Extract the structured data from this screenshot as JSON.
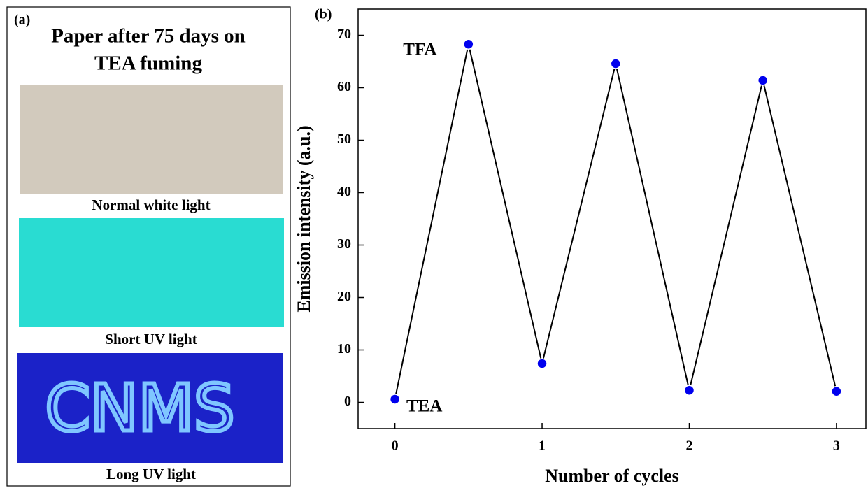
{
  "panel_a": {
    "label": "(a)",
    "title_lines": [
      "Paper after 75 days on",
      "TEA fuming"
    ],
    "captions": [
      "Normal white light",
      "Short UV light",
      "Long UV light"
    ],
    "photo_text": "CNMS"
  },
  "chart_data": {
    "type": "line",
    "panel_label": "(b)",
    "x_label": "Number of cycles",
    "y_label": "Emission intensity (a.u.)",
    "x": [
      0,
      0.5,
      1,
      1.5,
      2,
      2.5,
      3
    ],
    "values": [
      0.6,
      68.3,
      7.4,
      64.6,
      2.3,
      61.4,
      2.1
    ],
    "color": "#0000ee",
    "line_color": "#000000",
    "xlim": [
      -0.25,
      3.2
    ],
    "ylim": [
      -5,
      75
    ],
    "xticks": [
      0,
      1,
      2,
      3
    ],
    "yticks": [
      0,
      10,
      20,
      30,
      40,
      50,
      60,
      70
    ],
    "annotations": [
      {
        "text": "TFA",
        "x": 0.17,
        "y": 67
      },
      {
        "text": "TEA",
        "x": 0.2,
        "y": -1
      }
    ]
  }
}
